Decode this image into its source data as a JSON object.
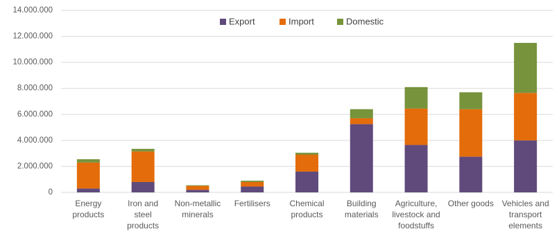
{
  "chart_data": {
    "type": "stacked_bar",
    "categories": [
      "Energy\nproducts",
      "Iron and\nsteel\nproducts",
      "Non-metallic\nminerals",
      "Fertilisers",
      "Chemical\nproducts",
      "Building\nmaterials",
      "Agriculture,\nlivestock and\nfoodstuffs",
      "Other goods",
      "Vehicles and\ntransport\nelements"
    ],
    "series": [
      {
        "name": "Export",
        "color": "#604a7b",
        "values": [
          300000,
          800000,
          200000,
          450000,
          1600000,
          5250000,
          3650000,
          2750000,
          4000000
        ]
      },
      {
        "name": "Import",
        "color": "#e46c0a",
        "values": [
          2000000,
          2350000,
          300000,
          350000,
          1300000,
          450000,
          2800000,
          3650000,
          3650000
        ]
      },
      {
        "name": "Domestic",
        "color": "#77933c",
        "values": [
          250000,
          200000,
          50000,
          100000,
          150000,
          700000,
          1650000,
          1300000,
          3850000
        ]
      }
    ],
    "ylim": [
      0,
      14000000
    ],
    "yticks": [
      0,
      {
        "value": 2000000,
        "label": "2.000.000"
      },
      {
        "value": 4000000,
        "label": "4.000.000"
      },
      {
        "value": 6000000,
        "label": "6.000.000"
      },
      {
        "value": 8000000,
        "label": "8.000.000"
      },
      {
        "value": 10000000,
        "label": "10.000.000"
      },
      {
        "value": 12000000,
        "label": "12.000.000"
      },
      {
        "value": 14000000,
        "label": "14.000.000"
      }
    ],
    "grid": true,
    "legend": "top"
  }
}
